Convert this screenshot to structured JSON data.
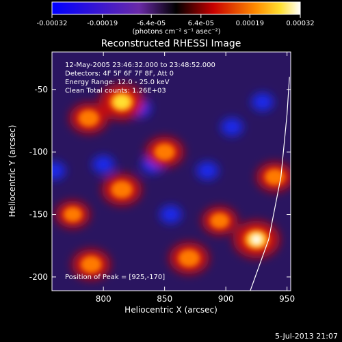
{
  "colorbar": {
    "ticks": [
      "-0.00032",
      "-0.00019",
      "-6.4e-05",
      "6.4e-05",
      "0.00019",
      "0.00032"
    ],
    "tick_values": [
      -0.00032,
      -0.00019,
      -6.4e-05,
      6.4e-05,
      0.00019,
      0.00032
    ],
    "units": "(photons cm⁻² s⁻¹ asec⁻²)",
    "range": [
      -0.00032,
      0.00032
    ]
  },
  "chart_data": {
    "type": "heatmap",
    "title": "Reconstructed RHESSI Image",
    "xlabel": "Heliocentric X (arcsec)",
    "ylabel": "Heliocentric Y (arcsec)",
    "xlim": [
      758,
      953
    ],
    "ylim": [
      -211,
      -20
    ],
    "x_ticks": [
      800,
      850,
      900,
      950
    ],
    "y_ticks": [
      -50,
      -100,
      -150,
      -200
    ],
    "info_lines": [
      "12-May-2005 23:46:32.000 to 23:48:52.000",
      "Detectors: 4F 5F 6F 7F 8F, Att 0",
      "Energy Range: 12.0 - 25.0 keV",
      "Clean     Total counts: 1.26E+03"
    ],
    "peak_label": "Position of Peak = [925,-170]",
    "peak": [
      925,
      -170
    ],
    "bright_sources": [
      {
        "x": 925,
        "y": -170,
        "level": 1.0
      },
      {
        "x": 815,
        "y": -60,
        "level": 0.95
      },
      {
        "x": 815,
        "y": -130,
        "level": 0.75
      },
      {
        "x": 788,
        "y": -73,
        "level": 0.7
      },
      {
        "x": 850,
        "y": -100,
        "level": 0.7
      },
      {
        "x": 870,
        "y": -185,
        "level": 0.75
      },
      {
        "x": 790,
        "y": -190,
        "level": 0.7
      },
      {
        "x": 940,
        "y": -120,
        "level": 0.65
      },
      {
        "x": 895,
        "y": -155,
        "level": 0.6
      },
      {
        "x": 775,
        "y": -150,
        "level": 0.55
      }
    ],
    "dark_sources": [
      {
        "x": 830,
        "y": -65
      },
      {
        "x": 840,
        "y": -110
      },
      {
        "x": 800,
        "y": -110
      },
      {
        "x": 885,
        "y": -115
      },
      {
        "x": 905,
        "y": -80
      },
      {
        "x": 760,
        "y": -115
      },
      {
        "x": 855,
        "y": -150
      },
      {
        "x": 930,
        "y": -60
      }
    ],
    "limb_line": true
  },
  "footer": "5-Jul-2013 21:07"
}
